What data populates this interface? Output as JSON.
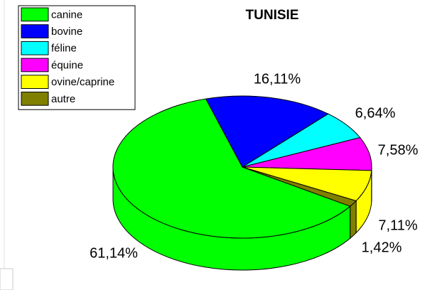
{
  "chart_data": {
    "type": "pie",
    "title": "TUNISIE",
    "categories": [
      "canine",
      "bovine",
      "féline",
      "équine",
      "ovine/caprine",
      "autre"
    ],
    "values": [
      61.14,
      16.11,
      6.64,
      7.58,
      7.11,
      1.42
    ],
    "value_labels": [
      "61,14%",
      "16,11%",
      "6,64%",
      "7,58%",
      "7,11%",
      "1,42%"
    ],
    "colors": [
      "#00ff00",
      "#0000ff",
      "#00ffff",
      "#ff00ff",
      "#ffff00",
      "#808000"
    ],
    "legend": "top-left"
  }
}
